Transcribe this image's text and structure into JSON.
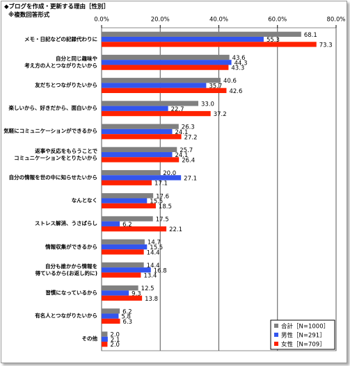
{
  "chart_data": {
    "type": "barh",
    "title": "◆ブログを作成・更新する理由［性別］",
    "subtitle": "※複数回答形式",
    "categories": [
      "メモ・日記などの記録代わりに",
      "自分と同じ趣味や\n考え方の人とつながりたいから",
      "友だちとつながりたいから",
      "楽しいから、好きだから、面白いから",
      "気軽にコミュニケーションができるから",
      "返事や反応をもらうことで\nコミュニケーションをとりたいから",
      "自分の情報を世の中に知らせたいから",
      "なんとなく",
      "ストレス解消、うさばらし",
      "情報収集ができるから",
      "自分も誰かから情報を\n得ているから(お返し的に)",
      "習慣になっているから",
      "有名人とつながりたいから",
      "その他"
    ],
    "series": [
      {
        "name": "合計［N=1000］",
        "color": "#808080",
        "values": [
          68.1,
          43.6,
          40.6,
          33.0,
          26.3,
          25.7,
          20.0,
          17.6,
          17.5,
          14.7,
          14.4,
          12.5,
          6.2,
          2.0
        ],
        "value_labels": [
          "68.1",
          "43.6",
          "40.6",
          "33.0",
          "26.3",
          "25.7",
          "20.0",
          "17.6",
          "17.5",
          "14.7",
          "14.4",
          "12.5",
          "6.2",
          "2.0"
        ]
      },
      {
        "name": "男性［N=291］",
        "color": "#3355ee",
        "values": [
          55.3,
          44.3,
          35.7,
          22.7,
          24.1,
          24.1,
          27.1,
          15.5,
          6.2,
          15.5,
          16.8,
          9.3,
          5.8,
          2.1
        ],
        "value_labels": [
          "55.3",
          "44.3",
          "35.7",
          "22.7",
          "24.1",
          "24.1",
          "27.1",
          "15.5",
          "6.2",
          "15.5",
          "16.8",
          "9.3",
          "5.8",
          "2.1"
        ]
      },
      {
        "name": "女性［N=709］",
        "color": "#ff2200",
        "values": [
          73.3,
          43.3,
          42.6,
          37.2,
          27.2,
          26.4,
          17.1,
          18.5,
          22.1,
          14.4,
          13.4,
          13.8,
          6.3,
          2.0
        ],
        "value_labels": [
          "73.3",
          "43.3",
          "42.6",
          "37.2",
          "27.2",
          "26.4",
          "17.1",
          "18.5",
          "22.1",
          "14.4",
          "13.4",
          "13.8",
          "6.3",
          "2.0"
        ]
      }
    ],
    "xlim": [
      0,
      80
    ],
    "xticks": [
      {
        "value": 0,
        "label": "0.0%"
      },
      {
        "value": 20,
        "label": "20.0%"
      },
      {
        "value": 40,
        "label": "40.0%"
      },
      {
        "value": 60,
        "label": "60.0%"
      },
      {
        "value": 80,
        "label": "80.0%"
      }
    ],
    "grid": true,
    "legend": "lower right"
  }
}
